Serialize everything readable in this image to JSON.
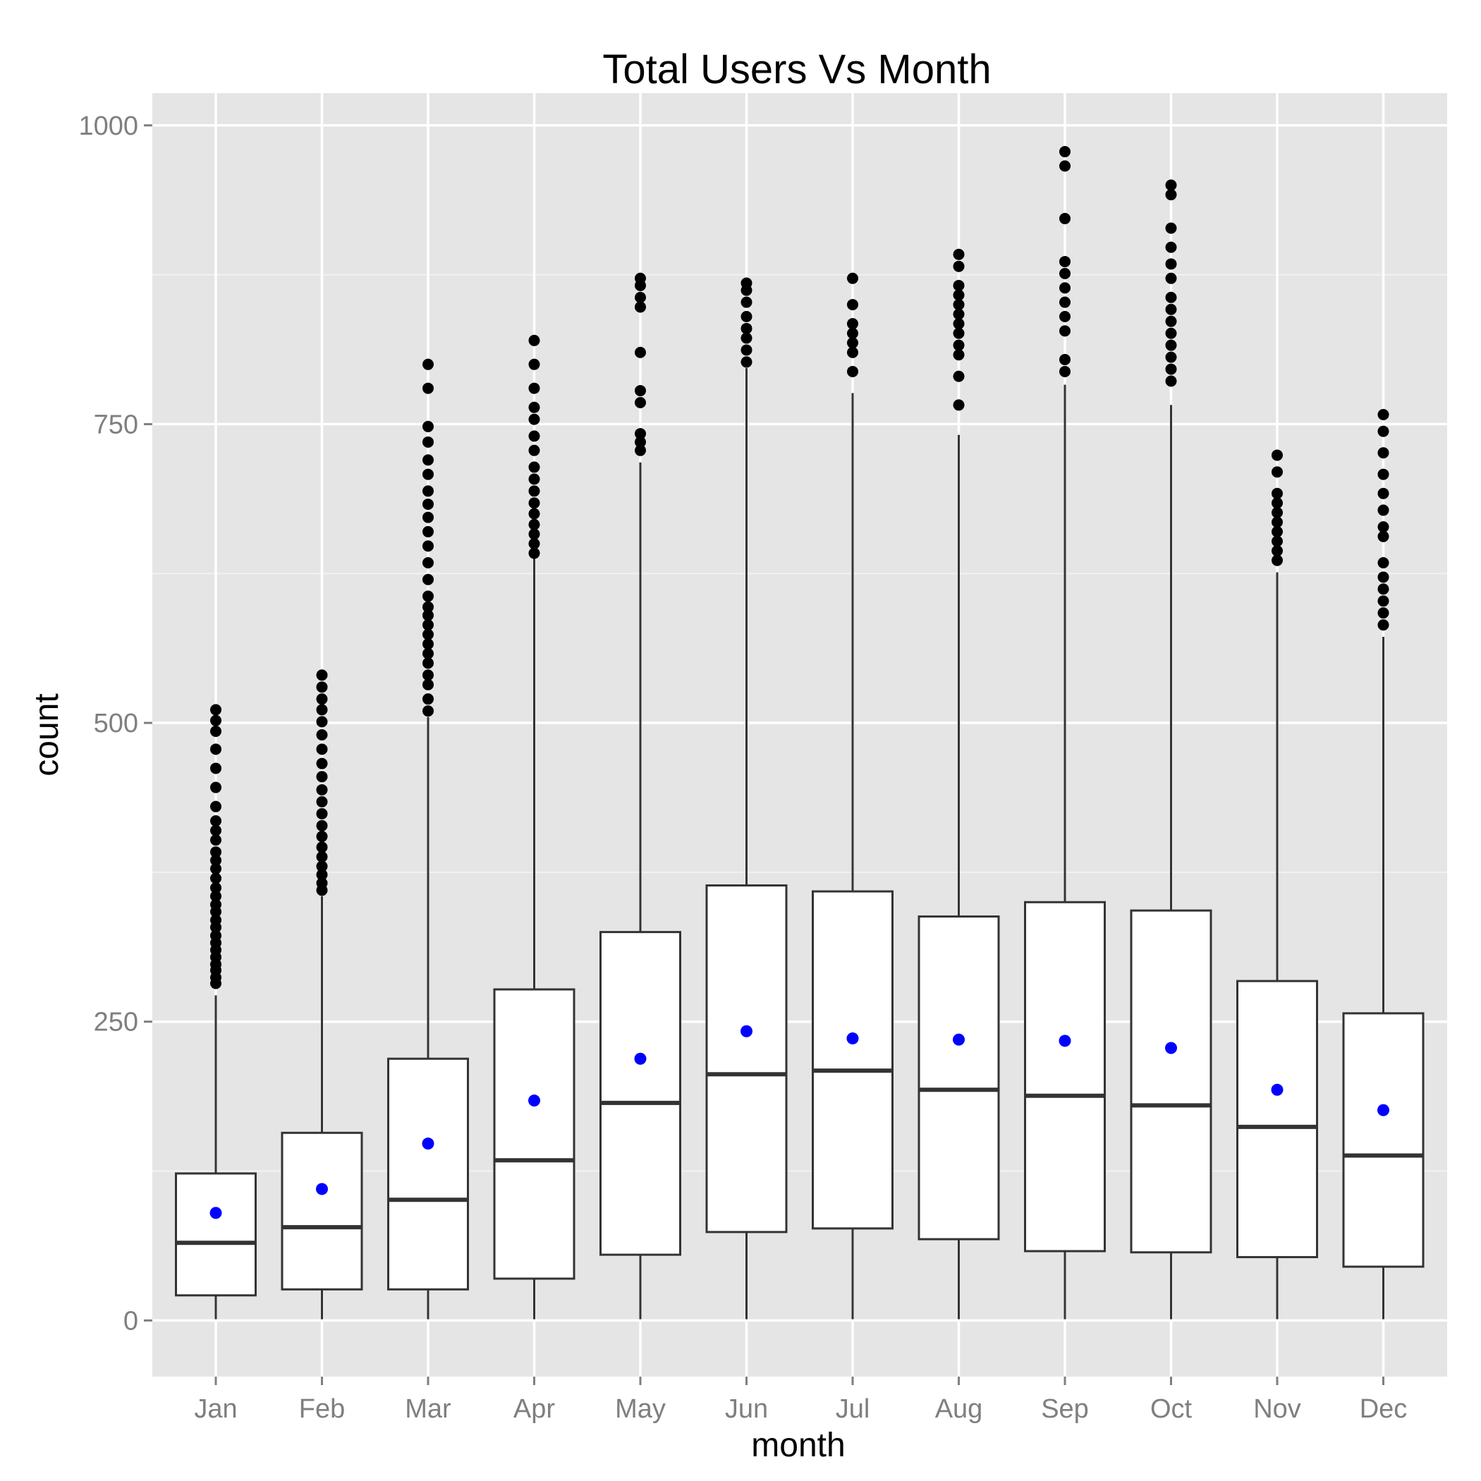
{
  "chart_data": {
    "type": "box",
    "title": "Total Users Vs Month",
    "xlabel": "month",
    "ylabel": "count",
    "ylim": [
      -47,
      1027
    ],
    "yticks": [
      0,
      250,
      500,
      750,
      1000
    ],
    "categories": [
      "Jan",
      "Feb",
      "Mar",
      "Apr",
      "May",
      "Jun",
      "Jul",
      "Aug",
      "Sep",
      "Oct",
      "Nov",
      "Dec"
    ],
    "boxes": [
      {
        "whisker_low": 1,
        "q1": 21,
        "median": 65,
        "q3": 123,
        "whisker_high": 272,
        "mean": 90,
        "outliers": [
          282,
          287,
          293,
          298,
          304,
          310,
          316,
          322,
          329,
          335,
          342,
          348,
          355,
          362,
          370,
          378,
          385,
          392,
          402,
          410,
          418,
          430,
          446,
          462,
          478,
          493,
          502,
          511
        ]
      },
      {
        "whisker_low": 1,
        "q1": 26,
        "median": 78,
        "q3": 157,
        "whisker_high": 355,
        "mean": 110,
        "outliers": [
          360,
          366,
          373,
          380,
          388,
          396,
          405,
          414,
          424,
          434,
          444,
          455,
          466,
          478,
          490,
          501,
          511,
          520,
          530,
          540
        ]
      },
      {
        "whisker_low": 1,
        "q1": 26,
        "median": 101,
        "q3": 219,
        "whisker_high": 505,
        "mean": 148,
        "outliers": [
          510,
          520,
          532,
          540,
          550,
          558,
          566,
          574,
          582,
          590,
          597,
          606,
          620,
          634,
          648,
          660,
          672,
          683,
          694,
          708,
          720,
          735,
          748,
          780,
          800
        ]
      },
      {
        "whisker_low": 1,
        "q1": 35,
        "median": 134,
        "q3": 277,
        "whisker_high": 638,
        "mean": 184,
        "outliers": [
          642,
          650,
          658,
          666,
          675,
          684,
          694,
          704,
          714,
          728,
          740,
          754,
          764,
          780,
          800,
          820
        ]
      },
      {
        "whisker_low": 1,
        "q1": 55,
        "median": 182,
        "q3": 325,
        "whisker_high": 718,
        "mean": 219,
        "outliers": [
          728,
          735,
          742,
          768,
          778,
          810,
          848,
          856,
          866,
          872
        ]
      },
      {
        "whisker_low": 1,
        "q1": 74,
        "median": 206,
        "q3": 364,
        "whisker_high": 797,
        "mean": 242,
        "outliers": [
          802,
          812,
          822,
          830,
          840,
          852,
          862,
          868
        ]
      },
      {
        "whisker_low": 1,
        "q1": 77,
        "median": 209,
        "q3": 359,
        "whisker_high": 776,
        "mean": 236,
        "outliers": [
          794,
          810,
          818,
          826,
          834,
          850,
          872
        ]
      },
      {
        "whisker_low": 1,
        "q1": 68,
        "median": 193,
        "q3": 338,
        "whisker_high": 741,
        "mean": 235,
        "outliers": [
          766,
          790,
          808,
          816,
          826,
          834,
          842,
          850,
          858,
          866,
          882,
          892
        ]
      },
      {
        "whisker_low": 1,
        "q1": 58,
        "median": 188,
        "q3": 350,
        "whisker_high": 783,
        "mean": 234,
        "outliers": [
          794,
          804,
          828,
          840,
          852,
          864,
          876,
          886,
          922,
          966,
          978
        ]
      },
      {
        "whisker_low": 1,
        "q1": 57,
        "median": 180,
        "q3": 343,
        "whisker_high": 766,
        "mean": 228,
        "outliers": [
          786,
          796,
          806,
          816,
          826,
          836,
          846,
          856,
          872,
          884,
          898,
          914,
          942,
          950
        ]
      },
      {
        "whisker_low": 1,
        "q1": 53,
        "median": 162,
        "q3": 284,
        "whisker_high": 626,
        "mean": 193,
        "outliers": [
          636,
          644,
          652,
          660,
          668,
          676,
          684,
          692,
          710,
          724
        ]
      },
      {
        "whisker_low": 1,
        "q1": 45,
        "median": 138,
        "q3": 257,
        "whisker_high": 572,
        "mean": 176,
        "outliers": [
          582,
          592,
          602,
          612,
          622,
          634,
          656,
          664,
          678,
          692,
          708,
          726,
          744,
          758
        ]
      }
    ],
    "mean_color": "#0000ff",
    "outlier_color": "#000000",
    "panel_background": "#e5e5e5",
    "grid": true,
    "legend": "none"
  }
}
